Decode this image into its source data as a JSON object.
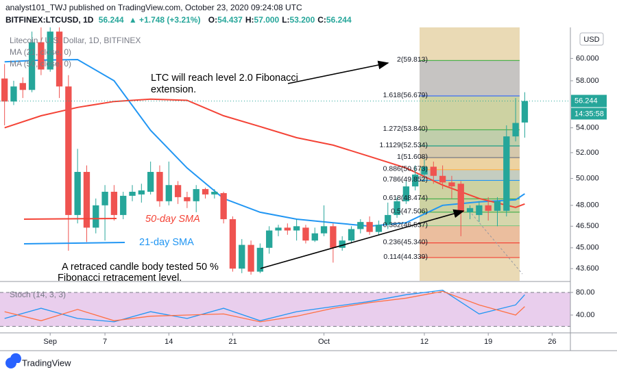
{
  "header": {
    "publisher": "analyst101_TWJ published on TradingView.com, October 23, 2020 09:24:08 UTC",
    "symbol": "BITFINEX:LTCUSD, 1D",
    "price": "56.244",
    "change": "▲ +1.748 (+3.21%)",
    "ohlc": [
      {
        "key": "O:",
        "val": "54.437"
      },
      {
        "key": "H:",
        "val": "57.000"
      },
      {
        "key": "L:",
        "val": "53.200"
      },
      {
        "key": "C:",
        "val": "56.244"
      }
    ]
  },
  "footer": {
    "brand": "TradingView"
  },
  "chart_data": {
    "type": "candlestick",
    "title": "Litecoin / U.S. Dollar, 1D, BITFINEX",
    "currency": "USD",
    "countdown": "14:35:58",
    "log_scale": true,
    "grid": false,
    "up_color": "#26a69a",
    "down_color": "#ef5350",
    "x": [
      "2020-08-27",
      "2020-08-28",
      "2020-08-29",
      "2020-08-30",
      "2020-08-31",
      "2020-09-01",
      "2020-09-02",
      "2020-09-03",
      "2020-09-04",
      "2020-09-05",
      "2020-09-06",
      "2020-09-07",
      "2020-09-08",
      "2020-09-09",
      "2020-09-10",
      "2020-09-11",
      "2020-09-12",
      "2020-09-13",
      "2020-09-14",
      "2020-09-15",
      "2020-09-16",
      "2020-09-17",
      "2020-09-18",
      "2020-09-19",
      "2020-09-20",
      "2020-09-21",
      "2020-09-22",
      "2020-09-23",
      "2020-09-24",
      "2020-09-25",
      "2020-09-26",
      "2020-09-27",
      "2020-09-28",
      "2020-09-29",
      "2020-09-30",
      "2020-10-01",
      "2020-10-02",
      "2020-10-03",
      "2020-10-04",
      "2020-10-05",
      "2020-10-06",
      "2020-10-07",
      "2020-10-08",
      "2020-10-09",
      "2020-10-10",
      "2020-10-11",
      "2020-10-12",
      "2020-10-13",
      "2020-10-14",
      "2020-10-15",
      "2020-10-16",
      "2020-10-17",
      "2020-10-18",
      "2020-10-19",
      "2020-10-20",
      "2020-10-21",
      "2020-10-22",
      "2020-10-23"
    ],
    "open": [
      58.2,
      56.2,
      57.8,
      57.2,
      61.5,
      59.0,
      62.5,
      57.5,
      47.3,
      50.5,
      46.4,
      48.0,
      49.0,
      47.3,
      48.7,
      48.8,
      49.0,
      50.5,
      48.3,
      49.5,
      48.6,
      48.3,
      49.2,
      48.8,
      48.9,
      47.0,
      43.6,
      45.2,
      43.4,
      45.0,
      46.2,
      46.4,
      46.2,
      46.4,
      45.5,
      46.0,
      46.5,
      45.0,
      45.5,
      46.3,
      46.8,
      46.1,
      46.6,
      47.3,
      48.3,
      49.4,
      50.3,
      50.9,
      50.2,
      49.7,
      49.6,
      47.5,
      47.3,
      48.0,
      47.6,
      47.6,
      53.3,
      54.437
    ],
    "high": [
      59.5,
      58.0,
      58.3,
      62.5,
      63.0,
      63.0,
      63.0,
      58.5,
      52.3,
      51.0,
      48.5,
      49.5,
      49.5,
      49.0,
      49.5,
      49.6,
      51.3,
      51.0,
      51.3,
      49.8,
      49.0,
      49.5,
      49.3,
      49.2,
      49.0,
      47.2,
      45.6,
      45.5,
      45.3,
      46.5,
      46.6,
      46.7,
      47.0,
      46.6,
      46.4,
      48.0,
      46.7,
      45.8,
      46.5,
      47.0,
      47.2,
      46.9,
      48.2,
      48.6,
      49.8,
      51.0,
      51.5,
      51.3,
      51.0,
      50.2,
      49.8,
      48.0,
      48.3,
      48.6,
      48.6,
      54.2,
      56.5,
      57.0
    ],
    "low": [
      54.2,
      55.9,
      56.5,
      57.0,
      58.5,
      58.8,
      56.5,
      44.8,
      46.7,
      45.4,
      46.0,
      45.5,
      46.9,
      47.0,
      48.3,
      48.2,
      48.8,
      47.9,
      48.0,
      48.1,
      47.8,
      47.5,
      48.5,
      48.5,
      46.7,
      43.4,
      43.3,
      43.2,
      43.3,
      44.6,
      45.8,
      45.9,
      45.5,
      45.3,
      45.4,
      45.8,
      44.0,
      44.8,
      45.3,
      46.0,
      45.9,
      45.9,
      46.3,
      47.1,
      48.1,
      49.1,
      49.8,
      49.6,
      49.2,
      48.5,
      45.8,
      47.0,
      46.8,
      46.9,
      46.5,
      47.2,
      52.9,
      53.2
    ],
    "close": [
      56.2,
      57.5,
      57.2,
      61.5,
      59.0,
      62.5,
      57.5,
      47.3,
      50.5,
      46.4,
      48.0,
      49.0,
      47.3,
      48.7,
      49.0,
      49.1,
      50.5,
      48.3,
      49.5,
      48.6,
      48.3,
      49.2,
      48.8,
      49.0,
      47.0,
      43.6,
      45.2,
      43.4,
      45.0,
      46.2,
      46.4,
      46.2,
      46.5,
      45.5,
      46.0,
      46.5,
      45.0,
      45.5,
      46.3,
      46.8,
      46.1,
      46.6,
      47.3,
      48.3,
      49.4,
      50.3,
      50.9,
      50.2,
      49.7,
      49.4,
      47.5,
      47.8,
      48.0,
      47.6,
      48.3,
      53.3,
      54.4,
      56.244
    ],
    "xlim": [
      "2020-08-26T12:00:00Z",
      "2020-10-28T00:00:00Z"
    ],
    "xticks": [
      {
        "value": "2020-09-01",
        "label": "Sep"
      },
      {
        "value": "2020-09-07",
        "label": "7"
      },
      {
        "value": "2020-09-14",
        "label": "14"
      },
      {
        "value": "2020-09-21",
        "label": "21"
      },
      {
        "value": "2020-10-01",
        "label": "Oct"
      },
      {
        "value": "2020-10-12",
        "label": "12"
      },
      {
        "value": "2020-10-19",
        "label": "19"
      },
      {
        "value": "2020-10-26",
        "label": "26"
      }
    ],
    "ylim": [
      42.8,
      62.9
    ],
    "yticks": [
      {
        "value": 43.6,
        "label": "43.600"
      },
      {
        "value": 45,
        "label": "45.000"
      },
      {
        "value": 46.5,
        "label": "46.500"
      },
      {
        "value": 48,
        "label": "48.000"
      },
      {
        "value": 50,
        "label": "50.000"
      },
      {
        "value": 52,
        "label": "52.000"
      },
      {
        "value": 54,
        "label": "54.000"
      },
      {
        "value": 58,
        "label": "58.000"
      },
      {
        "value": 60,
        "label": "60.000"
      }
    ],
    "overlay_x": [
      "2020-08-27",
      "2020-08-31",
      "2020-09-04",
      "2020-09-08",
      "2020-09-12",
      "2020-09-16",
      "2020-09-20",
      "2020-09-24",
      "2020-09-28",
      "2020-10-02",
      "2020-10-06",
      "2020-10-10",
      "2020-10-14",
      "2020-10-18",
      "2020-10-22",
      "2020-10-23"
    ],
    "moving_averages": [
      {
        "name": "MA (21, close, 0)",
        "color": "#2196f3",
        "values": [
          59.7,
          59.85,
          59.9,
          58.0,
          53.8,
          50.8,
          48.5,
          47.5,
          47.0,
          46.75,
          46.5,
          46.75,
          48.0,
          48.25,
          48.4,
          48.85
        ]
      },
      {
        "name": "MA (50, close, 0)",
        "color": "#f44336",
        "values": [
          54.0,
          55.0,
          55.7,
          56.2,
          56.4,
          56.3,
          55.0,
          54.1,
          53.2,
          52.6,
          51.7,
          50.8,
          49.5,
          48.5,
          47.85,
          48.1
        ]
      }
    ],
    "fibonacci": {
      "levels": [
        {
          "label": "2(59.813)",
          "value": 59.813,
          "color": "#4caf50"
        },
        {
          "label": "1.618(56.679)",
          "value": 56.679,
          "color": "#2962ff"
        },
        {
          "label": "1.272(53.840)",
          "value": 53.84,
          "color": "#4caf50"
        },
        {
          "label": "1.1129(52.534)",
          "value": 52.534,
          "color": "#089981"
        },
        {
          "label": "1(51.608)",
          "value": 51.608,
          "color": "#787b86"
        },
        {
          "label": "0.886(50.673)",
          "value": 50.673,
          "color": "#ffb74d"
        },
        {
          "label": "0.786(49.852)",
          "value": 49.852,
          "color": "#2196f3"
        },
        {
          "label": "0.618(48.474)",
          "value": 48.474,
          "color": "#4caf50"
        },
        {
          "label": "0.5(47.506)",
          "value": 47.506,
          "color": "#4caf50"
        },
        {
          "label": "0.382(46.537)",
          "value": 46.537,
          "color": "#81c784"
        },
        {
          "label": "0.236(45.340)",
          "value": 45.34,
          "color": "#f44336"
        },
        {
          "label": "0.114(44.339)",
          "value": 44.339,
          "color": "#f44336"
        }
      ]
    },
    "annotations": {
      "target": [
        "LTC will reach level 2.0 Fibonacci",
        "extension."
      ],
      "sma50": "50-day SMA",
      "sma21": "21-day SMA",
      "retrace": [
        "A retraced candle body tested 50 %",
        "Fibonacci retracement level."
      ]
    },
    "stochastic": {
      "name": "Stoch (14, 3, 3)",
      "ylim": [
        8.5,
        98.2
      ],
      "bands": [
        20,
        80
      ],
      "yticks": [
        {
          "value": 80,
          "label": "80.00"
        },
        {
          "value": 40,
          "label": "40.00"
        }
      ],
      "series": [
        {
          "color": "#2196f3",
          "values": [
            34,
            52,
            34,
            28,
            46,
            34,
            52,
            30,
            46,
            55,
            64,
            76,
            84,
            42,
            58,
            76
          ]
        },
        {
          "color": "#ff7043",
          "values": [
            46,
            30,
            50,
            30,
            38,
            40,
            42,
            28,
            38,
            52,
            62,
            70,
            82,
            58,
            40,
            55
          ]
        }
      ]
    }
  }
}
